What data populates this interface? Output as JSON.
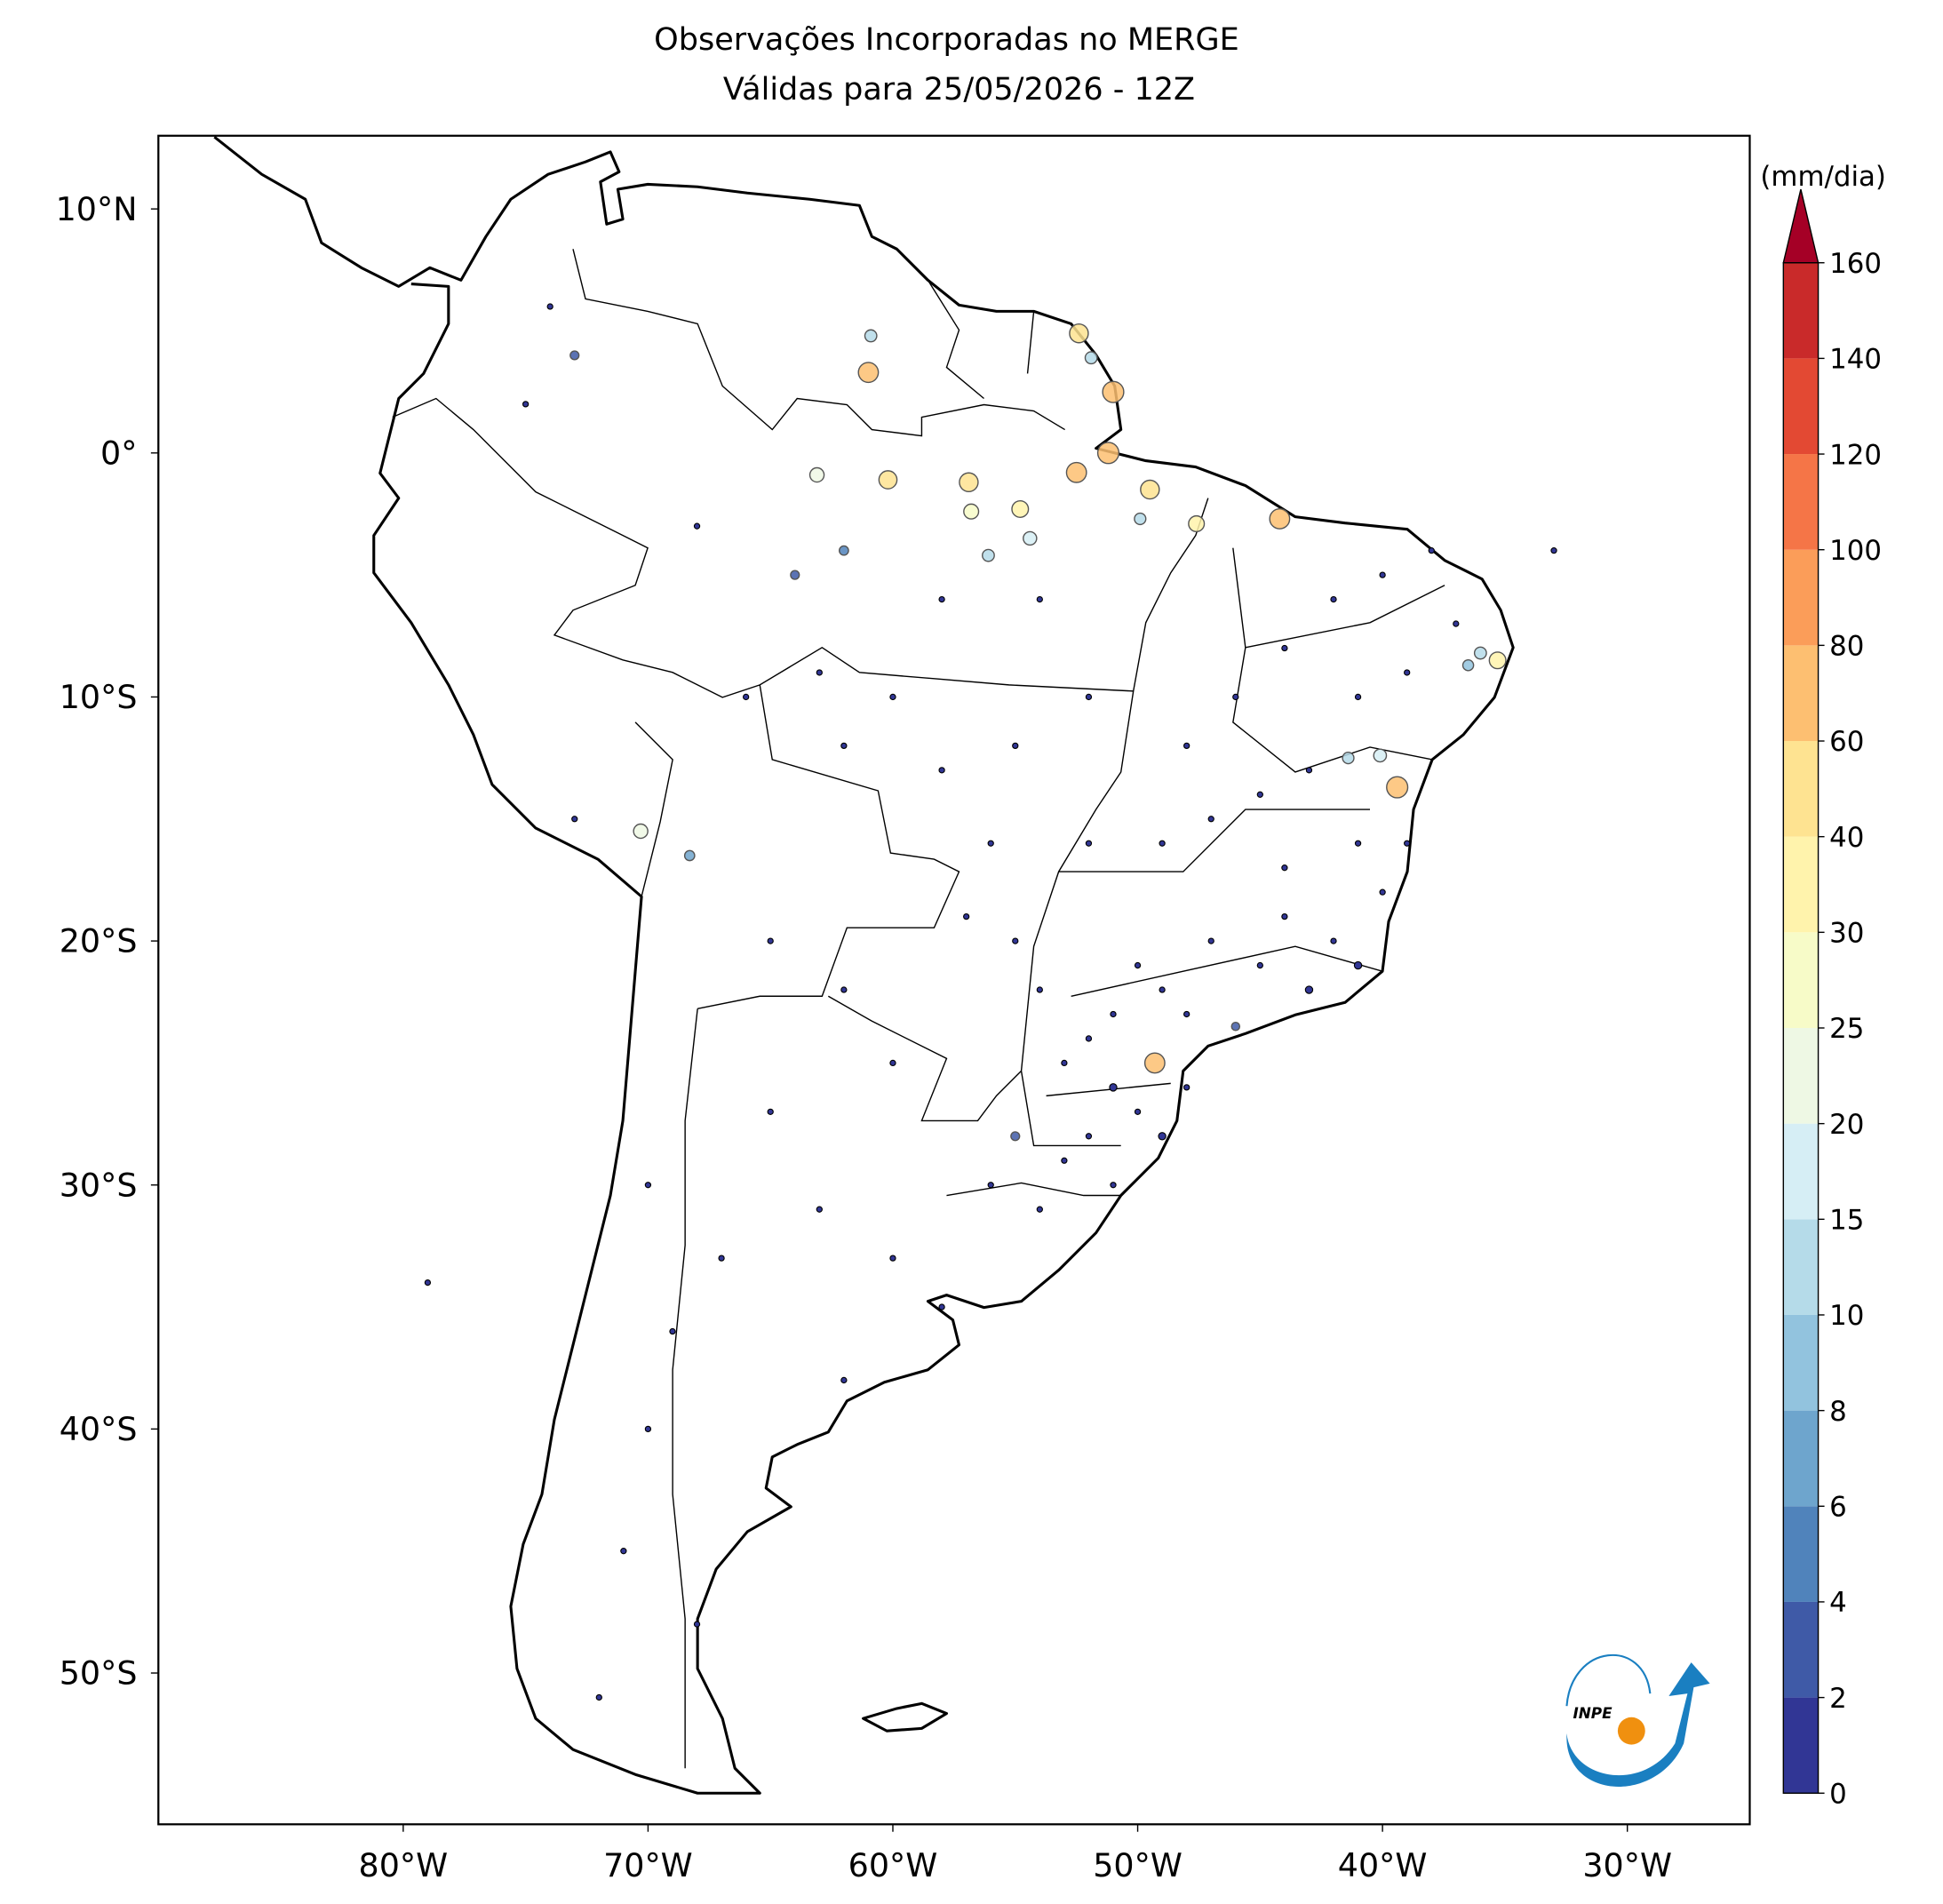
{
  "map": {
    "title": [
      "Observações Incorporadas no MERGE",
      "Válidas para 25/05/2026 - 12Z"
    ],
    "xlim": [
      -90,
      -25
    ],
    "ylim": [
      -56.2,
      13
    ],
    "xticks": [
      {
        "value": -80,
        "label": "80°W"
      },
      {
        "value": -70,
        "label": "70°W"
      },
      {
        "value": -60,
        "label": "60°W"
      },
      {
        "value": -50,
        "label": "50°W"
      },
      {
        "value": -40,
        "label": "40°W"
      },
      {
        "value": -30,
        "label": "30°W"
      }
    ],
    "yticks": [
      {
        "value": 10,
        "label": "10°N"
      },
      {
        "value": 0,
        "label": "0°"
      },
      {
        "value": -10,
        "label": "10°S"
      },
      {
        "value": -20,
        "label": "20°S"
      },
      {
        "value": -30,
        "label": "30°S"
      },
      {
        "value": -40,
        "label": "40°S"
      },
      {
        "value": -50,
        "label": "50°S"
      }
    ],
    "colorbar": {
      "label": "(mm/dia)",
      "levels": [
        0,
        2,
        4,
        6,
        8,
        10,
        15,
        20,
        25,
        30,
        40,
        60,
        80,
        100,
        120,
        140,
        160
      ],
      "colors": [
        "#313695",
        "#3f5aa7",
        "#5083bb",
        "#6ea5cd",
        "#92c3de",
        "#b5dbe9",
        "#d6eef5",
        "#eef8e4",
        "#f7fbc8",
        "#fff3ac",
        "#fee391",
        "#fdbf71",
        "#fb9d59",
        "#f57547",
        "#e34933",
        "#c92a2a"
      ],
      "extend_color": "#a50026"
    },
    "logo_text": "INPE",
    "stations": {
      "lon": [
        -47,
        -45,
        -43,
        -44,
        -42,
        -41,
        -48,
        -46,
        -49,
        -50,
        -51,
        -52,
        -53,
        -51,
        -50,
        -52,
        -53,
        -51,
        -54,
        -55,
        -56,
        -49,
        -48,
        -54,
        -55,
        -57,
        -56,
        -52,
        -49,
        -47,
        -48,
        -46,
        -44,
        -42,
        -40,
        -38,
        -37,
        -39,
        -41,
        -43,
        -45,
        -41,
        -39,
        -44,
        -40,
        -52,
        -55,
        -58,
        -60,
        -63,
        -62,
        -66,
        -58,
        -54,
        -62,
        -64,
        -68,
        -73,
        -65,
        -62,
        -60,
        -65,
        -63,
        -60,
        -58,
        -62,
        -67,
        -69,
        -70,
        -71,
        -68,
        -72,
        -70,
        -75,
        -74,
        -73,
        -79,
        -33,
        -51.9,
        -36.0,
        -40.1,
        -41.4,
        -68.3,
        -56.1,
        -49.9,
        -54.4,
        -60.9,
        -36.5,
        -52.4,
        -51.0,
        -61.0,
        -51.2,
        -52.5,
        -49.5,
        -44.2,
        -39.4,
        -49.3,
        -56.9,
        -60.2,
        -35.3,
        -54.8,
        -47.6,
        -70.3,
        -63.1,
        -56.8
      ],
      "lat": [
        -20,
        -21,
        -22,
        -19,
        -20,
        -21,
        -23,
        -23.5,
        -22,
        -21,
        -23,
        -24,
        -25,
        -26,
        -27,
        -28,
        -29,
        -30,
        -31,
        -28,
        -30,
        -28,
        -26,
        -22,
        -20,
        -19,
        -16,
        -16,
        -16,
        -15,
        -12,
        -10,
        -8,
        -6,
        -5,
        -4,
        -7,
        -9,
        -10,
        -13,
        -14,
        -16,
        -16,
        -17,
        -18,
        -10,
        -12,
        -13,
        -10,
        -9,
        -12,
        -10,
        -6,
        -6,
        -4,
        -5,
        -3,
        -15,
        -20,
        -22,
        -25,
        -27,
        -31,
        -33,
        -35,
        -38,
        -33,
        -36,
        -40,
        -45,
        -48,
        -51,
        -30,
        2,
        6,
        4,
        -34,
        -4,
        3.9,
        -8.2,
        -12.4,
        -12.5,
        -16.5,
        -4.2,
        -2.7,
        -3.5,
        4.8,
        -8.7,
        4.9,
        2.5,
        3.3,
        0.0,
        -0.8,
        -1.5,
        -2.7,
        -13.7,
        -25.0,
        -1.2,
        -1.1,
        -8.5,
        -2.3,
        -2.9,
        -15.5,
        -0.9,
        -2.4
      ],
      "values": [
        0,
        0,
        1,
        0,
        0,
        1,
        0,
        2,
        0,
        0,
        0,
        0,
        0,
        1,
        0,
        0,
        0,
        0,
        0,
        3,
        0,
        1,
        0,
        0,
        0,
        0,
        0,
        0,
        0,
        0,
        0,
        0,
        0,
        0,
        0,
        0,
        0,
        0,
        0,
        0,
        0,
        0,
        0,
        0,
        0,
        0,
        0,
        0,
        0,
        0,
        0,
        0,
        0,
        0,
        4,
        3,
        0,
        0,
        0,
        0,
        0,
        0,
        0,
        0,
        0,
        0,
        0,
        0,
        0,
        0,
        0,
        0,
        0,
        0,
        0,
        3,
        0,
        0,
        12,
        12,
        15,
        10,
        6,
        12,
        10,
        18,
        12,
        8,
        50,
        70,
        60,
        70,
        60,
        50,
        60,
        70,
        60,
        50,
        45,
        35,
        35,
        30,
        22,
        22,
        25
      ]
    }
  }
}
